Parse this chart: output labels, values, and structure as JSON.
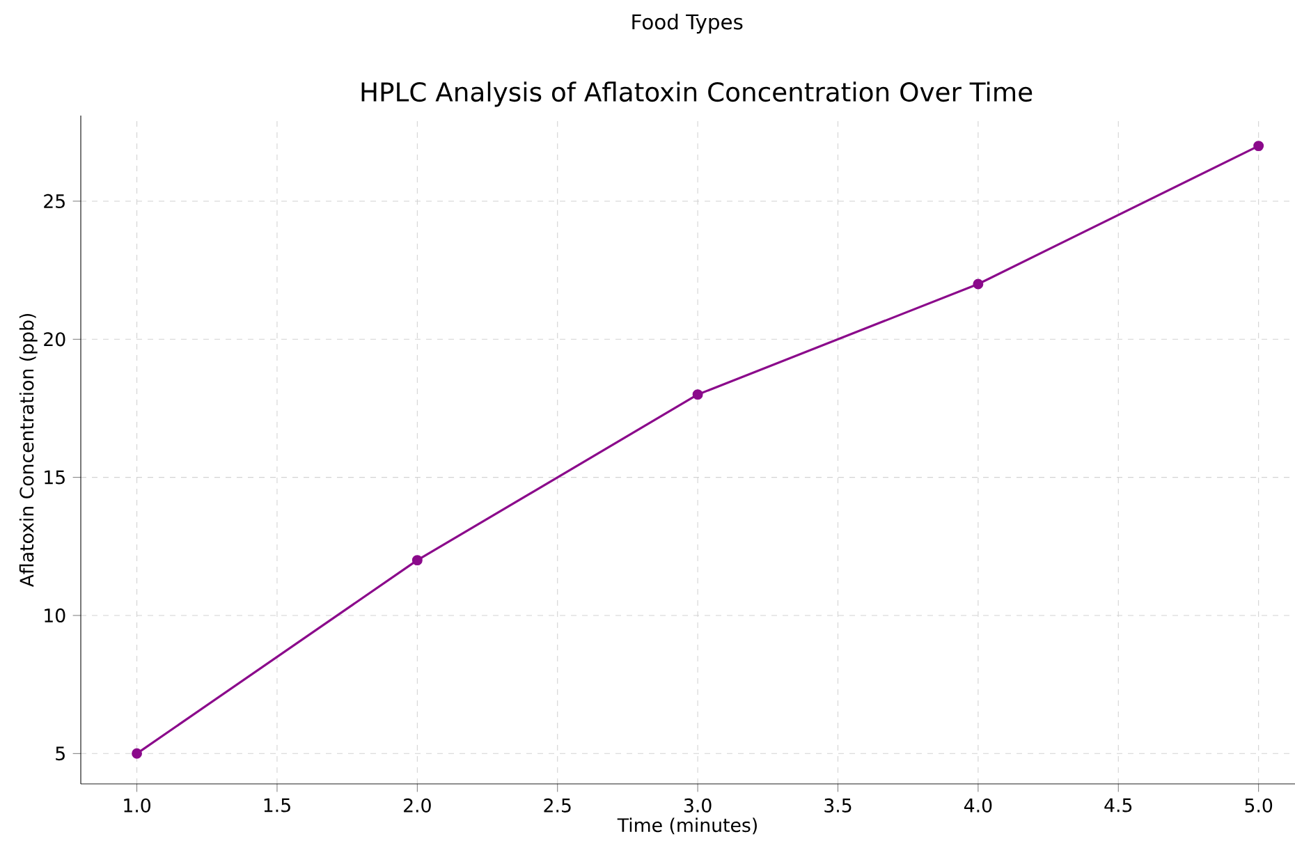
{
  "chart_data": {
    "type": "line",
    "title": "HPLC Analysis of Aflatoxin Concentration Over Time",
    "annotations": [
      "Food Types"
    ],
    "xlabel": "Time (minutes)",
    "ylabel": "Aflatoxin Concentration (ppb)",
    "x": [
      1,
      2,
      3,
      4,
      5
    ],
    "series": [
      {
        "color": "#8b0a8b",
        "values": [
          5,
          12,
          18,
          22,
          27
        ]
      }
    ],
    "xlim": [
      0.8,
      5.13
    ],
    "ylim": [
      3.9,
      28.1
    ],
    "xticks": [
      {
        "value": 1,
        "label": "1.0"
      },
      {
        "value": 1.5,
        "label": "1.5"
      },
      {
        "value": 2,
        "label": "2.0"
      },
      {
        "value": 2.5,
        "label": "2.5"
      },
      {
        "value": 3,
        "label": "3.0"
      },
      {
        "value": 3.5,
        "label": "3.5"
      },
      {
        "value": 4,
        "label": "4.0"
      },
      {
        "value": 4.5,
        "label": "4.5"
      },
      {
        "value": 5,
        "label": "5.0"
      }
    ],
    "yticks": [
      5,
      10,
      15,
      20,
      25
    ],
    "grid": true,
    "marker": "circle",
    "line_style": "solid"
  }
}
